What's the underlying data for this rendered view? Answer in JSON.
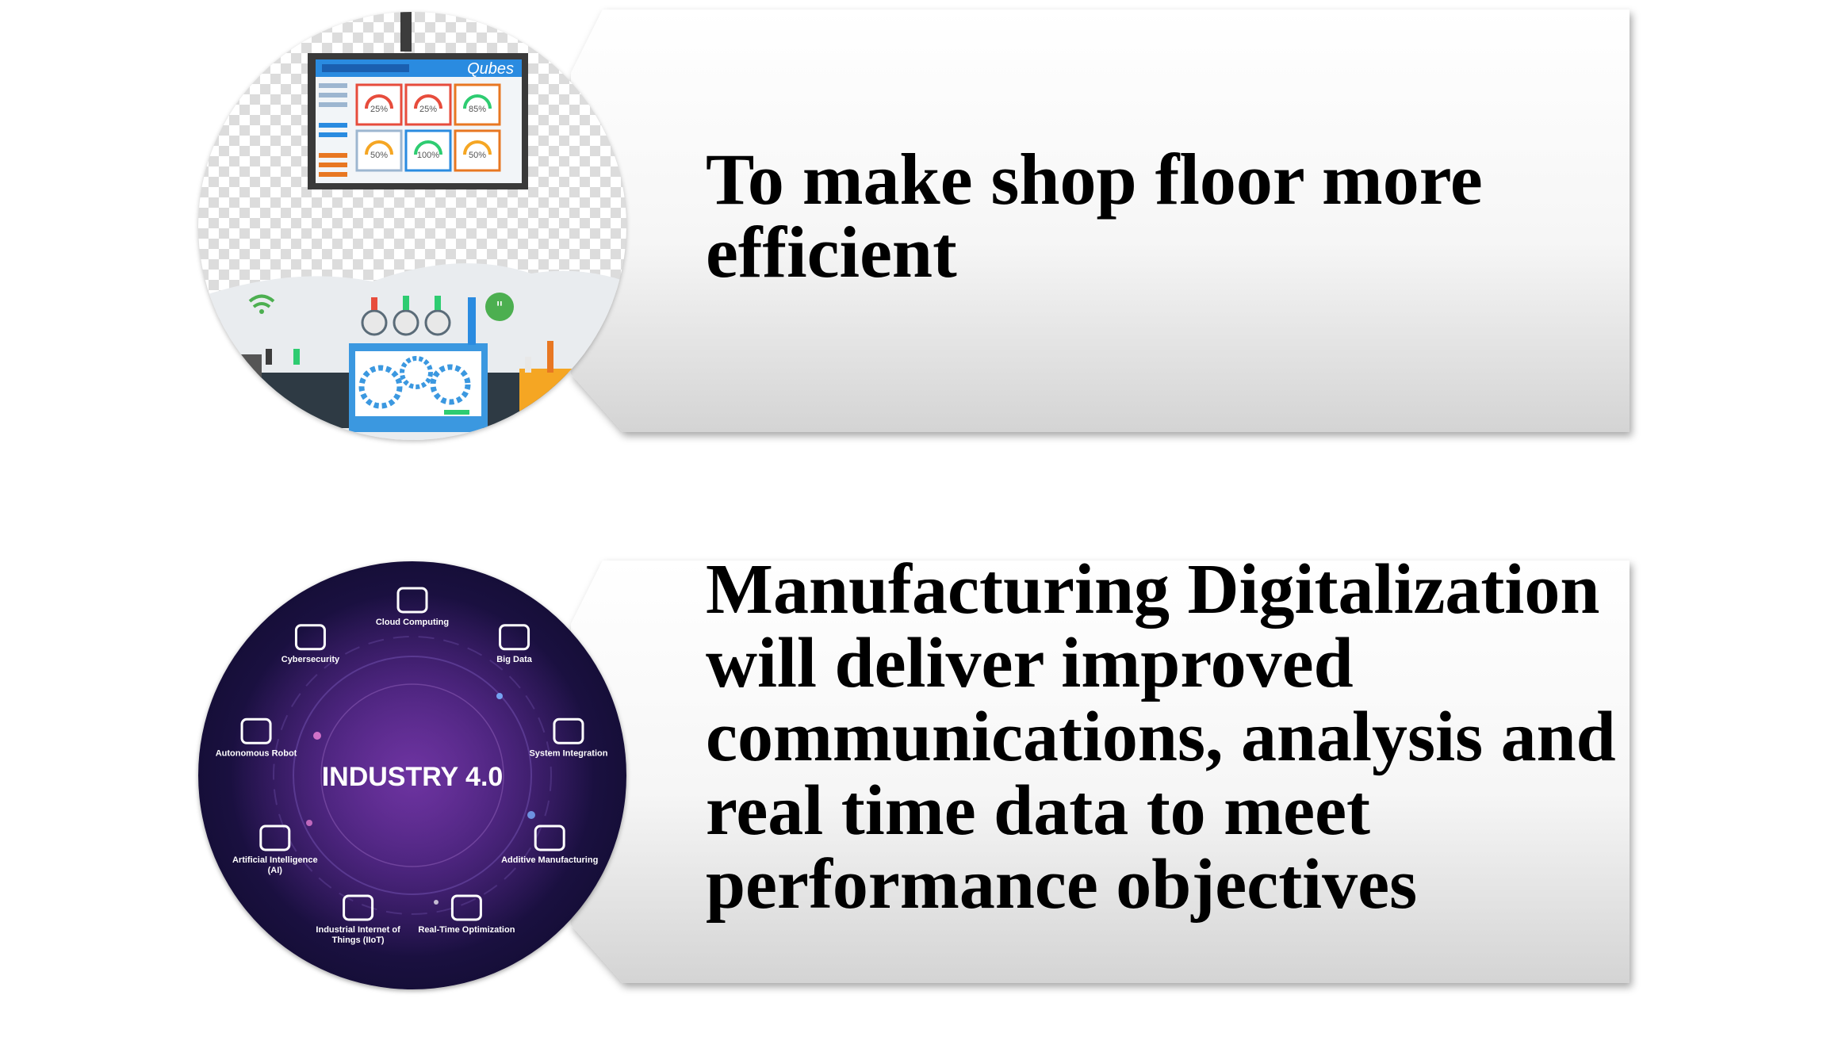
{
  "callouts": [
    {
      "text": "To make shop floor more efficient"
    },
    {
      "text": "Manufacturing Digitalization will deliver improved communications, analysis and real time data to meet performance objectives"
    }
  ],
  "dashboard_illustration": {
    "brand": "Qubes",
    "gauges": [
      "25%",
      "25%",
      "85%",
      "50%",
      "100%",
      "50%"
    ]
  },
  "industry_graphic": {
    "title": "INDUSTRY 4.0",
    "labels": [
      "Cloud Computing",
      "Big Data",
      "System Integration",
      "Additive Manufacturing",
      "Real-Time Optimization",
      "Industrial Internet of Things (IIoT)",
      "Artificial Intelligence (AI)",
      "Autonomous Robot",
      "Cybersecurity"
    ]
  },
  "colors": {
    "callout_fill_top": "#ffffff",
    "callout_fill_bottom": "#d9d9d9",
    "text": "#000000",
    "industry_bg": "#1a1040"
  }
}
